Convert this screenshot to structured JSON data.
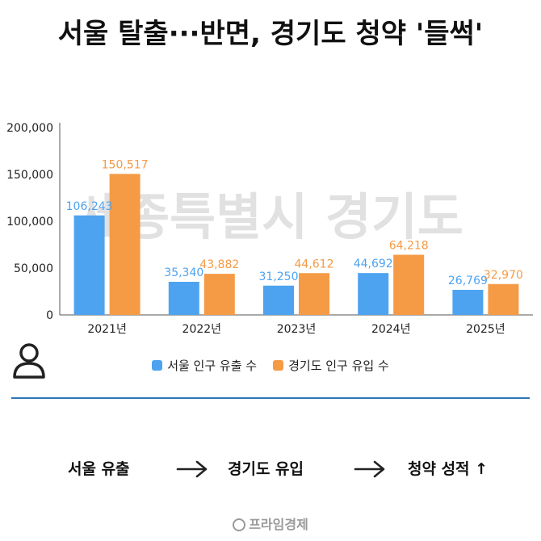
{
  "title": "서울 탈출···반면, 경기도 청약 '들썩'",
  "chart_data": {
    "type": "bar",
    "categories": [
      "2021년",
      "2022년",
      "2023년",
      "2024년",
      "2025년"
    ],
    "series": [
      {
        "name": "서울 인구 유출 수",
        "values": [
          106243,
          35340,
          31250,
          44692,
          26769
        ],
        "labels": [
          "106,243",
          "35,340",
          "31,250",
          "44,692",
          "26,769"
        ]
      },
      {
        "name": "경기도 인구 유입 수",
        "values": [
          150517,
          43882,
          44612,
          64218,
          32970
        ],
        "labels": [
          "150,517",
          "43,882",
          "44,612",
          "64,218",
          "32,970"
        ]
      }
    ],
    "yticks": [
      "0",
      "50,000",
      "100,000",
      "150,000",
      "200,000"
    ],
    "ytick_values": [
      0,
      50000,
      100000,
      150000,
      200000
    ],
    "ylim": [
      0,
      200000
    ],
    "grid": false,
    "legend_position": "bottom",
    "colors": [
      "#4da3f0",
      "#f59a45"
    ]
  },
  "watermark": "세종특별시 경기도",
  "flow": {
    "step1": "서울 유출",
    "step2": "경기도 유입",
    "step3": "청약 성적 ↑"
  },
  "footer": {
    "brand": "프라임경제"
  },
  "icons": {
    "user": "user-icon",
    "arrow": "arrow-right-icon"
  }
}
